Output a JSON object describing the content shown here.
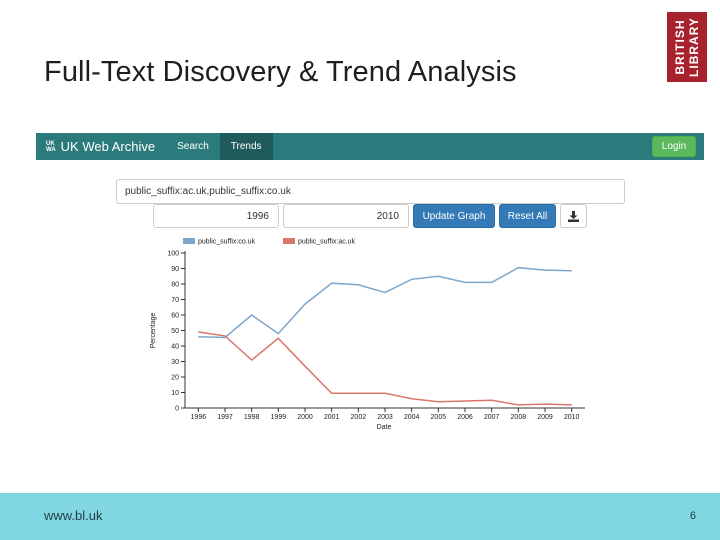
{
  "slide": {
    "title": "Full-Text Discovery & Trend Analysis",
    "logo": {
      "line1": "BRITISH",
      "line2": "LIBRARY",
      "color": "#a8222d"
    },
    "footer": {
      "url": "www.bl.uk",
      "page_number": "6",
      "color": "#80d6e1"
    }
  },
  "app": {
    "brand_mark_top": "UK",
    "brand_mark_bottom": "WA",
    "brand_name": "UK Web Archive",
    "nav": [
      {
        "label": "Search",
        "active": false
      },
      {
        "label": "Trends",
        "active": true
      }
    ],
    "login_label": "Login",
    "nav_color": "#2b7b7d"
  },
  "form": {
    "query_value": "public_suffix:ac.uk,public_suffix:co.uk",
    "from_year": "1996",
    "to_year": "2010",
    "update_label": "Update Graph",
    "reset_label": "Reset All",
    "download_icon": "download-icon"
  },
  "chart_data": {
    "type": "line",
    "x": [
      1996,
      1997,
      1998,
      1999,
      2000,
      2001,
      2002,
      2003,
      2004,
      2005,
      2006,
      2007,
      2008,
      2009,
      2010
    ],
    "series": [
      {
        "name": "public_suffix:co.uk",
        "color": "#7ea6c9",
        "values": [
          46,
          45.5,
          60,
          48,
          67,
          80.5,
          79.5,
          74.5,
          83,
          85,
          81,
          81,
          90.5,
          89,
          88.5
        ]
      },
      {
        "name": "public_suffix:ac.uk",
        "color": "#d9776c",
        "values": [
          49,
          46.5,
          31,
          45,
          27,
          9.5,
          9.5,
          9.5,
          6,
          4,
          4.5,
          5,
          2,
          2.5,
          2
        ]
      }
    ],
    "xlabel": "Date",
    "ylabel": "Percentage",
    "ylim": [
      0,
      100
    ],
    "yticks": [
      0,
      10,
      20,
      30,
      40,
      50,
      60,
      70,
      80,
      90,
      100
    ],
    "legend_position": "top-left"
  }
}
